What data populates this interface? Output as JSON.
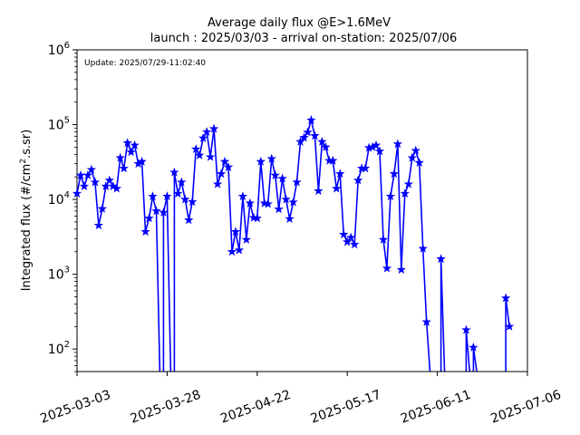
{
  "chart_data": {
    "type": "line",
    "title": "Average daily flux @E>1.6MeV",
    "subtitle": "launch : 2025/03/03 - arrival on-station: 2025/07/06",
    "annotation": "Update: 2025/07/29-11:02:40",
    "xlabel": "",
    "ylabel_main": "Integrated flux (#/cm",
    "ylabel_sup": "2",
    "ylabel_tail": ".s.sr)",
    "scale_y": "log",
    "ylim": [
      50,
      1000000
    ],
    "xlim": [
      "2025-03-03",
      "2025-07-06"
    ],
    "x_tick_labels": [
      "2025-03-03",
      "2025-03-28",
      "2025-04-22",
      "2025-05-17",
      "2025-06-11",
      "2025-07-06"
    ],
    "y_tick_labels": [
      {
        "base": "10",
        "exp": "2",
        "value": 100
      },
      {
        "base": "10",
        "exp": "3",
        "value": 1000
      },
      {
        "base": "10",
        "exp": "4",
        "value": 10000
      },
      {
        "base": "10",
        "exp": "5",
        "value": 100000
      },
      {
        "base": "10",
        "exp": "6",
        "value": 1000000
      }
    ],
    "grid": false,
    "series_color": "#0000ff",
    "marker": "star",
    "series": [
      {
        "x": [
          "2025-03-03",
          "2025-03-04",
          "2025-03-05",
          "2025-03-06",
          "2025-03-07",
          "2025-03-08",
          "2025-03-09",
          "2025-03-10",
          "2025-03-11",
          "2025-03-12",
          "2025-03-13",
          "2025-03-14",
          "2025-03-15",
          "2025-03-16",
          "2025-03-17",
          "2025-03-18",
          "2025-03-19",
          "2025-03-20",
          "2025-03-21",
          "2025-03-22",
          "2025-03-23",
          "2025-03-24",
          "2025-03-25",
          "2025-03-26",
          "2025-03-27",
          "2025-03-28",
          "2025-03-29",
          "2025-03-30",
          "2025-03-31",
          "2025-04-01",
          "2025-04-02",
          "2025-04-03",
          "2025-04-04",
          "2025-04-05",
          "2025-04-06",
          "2025-04-07",
          "2025-04-08",
          "2025-04-09",
          "2025-04-10",
          "2025-04-11",
          "2025-04-12",
          "2025-04-13",
          "2025-04-14",
          "2025-04-15",
          "2025-04-16",
          "2025-04-17",
          "2025-04-18",
          "2025-04-19",
          "2025-04-20",
          "2025-04-21",
          "2025-04-22",
          "2025-04-23",
          "2025-04-24",
          "2025-04-25",
          "2025-04-26",
          "2025-04-27",
          "2025-04-28",
          "2025-04-29",
          "2025-04-30",
          "2025-05-01",
          "2025-05-02",
          "2025-05-03",
          "2025-05-04",
          "2025-05-05",
          "2025-05-06",
          "2025-05-07",
          "2025-05-08",
          "2025-05-09",
          "2025-05-10",
          "2025-05-11",
          "2025-05-12",
          "2025-05-13",
          "2025-05-14",
          "2025-05-15",
          "2025-05-16",
          "2025-05-17",
          "2025-05-18",
          "2025-05-19",
          "2025-05-20",
          "2025-05-21",
          "2025-05-22",
          "2025-05-23",
          "2025-05-24",
          "2025-05-25",
          "2025-05-26",
          "2025-05-27",
          "2025-05-28",
          "2025-05-29",
          "2025-05-30",
          "2025-05-31",
          "2025-06-01",
          "2025-06-02",
          "2025-06-03",
          "2025-06-04",
          "2025-06-05",
          "2025-06-06",
          "2025-06-07",
          "2025-06-08",
          "2025-06-09",
          "2025-06-10",
          "2025-06-11",
          "2025-06-12",
          "2025-06-13",
          "2025-06-14",
          "2025-06-15",
          "2025-06-16",
          "2025-06-17",
          "2025-06-18",
          "2025-06-19",
          "2025-06-20",
          "2025-06-21",
          "2025-06-22",
          "2025-06-23",
          "2025-06-24",
          "2025-06-25",
          "2025-06-26",
          "2025-06-27",
          "2025-06-28",
          "2025-06-29",
          "2025-06-30",
          "2025-07-01"
        ],
        "y": [
          12000,
          21000,
          15000,
          21000,
          25000,
          17000,
          4500,
          7500,
          15000,
          18000,
          15000,
          14000,
          36000,
          26000,
          57000,
          43000,
          53000,
          30000,
          32000,
          3700,
          5600,
          11000,
          7000,
          null,
          6700,
          11000,
          null,
          23000,
          12000,
          17000,
          10000,
          5300,
          9300,
          47000,
          39000,
          66000,
          80000,
          37000,
          88000,
          16000,
          22000,
          32000,
          27000,
          2000,
          3700,
          2100,
          11000,
          2900,
          8900,
          5700,
          5600,
          32000,
          8900,
          8700,
          35000,
          21000,
          7400,
          19000,
          10000,
          5500,
          9200,
          17000,
          59000,
          67000,
          79000,
          115000,
          71000,
          13000,
          59000,
          50000,
          33000,
          33000,
          14000,
          22000,
          3400,
          2700,
          3100,
          2500,
          18000,
          26000,
          26000,
          49000,
          50000,
          53000,
          44000,
          2900,
          1200,
          11000,
          22000,
          55000,
          1150,
          12000,
          16000,
          36000,
          45000,
          31000,
          2200,
          230,
          null,
          null,
          null,
          1600,
          null,
          null,
          null,
          null,
          null,
          null,
          180,
          null,
          105,
          null,
          null,
          null,
          null,
          null,
          null,
          null,
          null,
          480,
          200
        ]
      }
    ]
  }
}
